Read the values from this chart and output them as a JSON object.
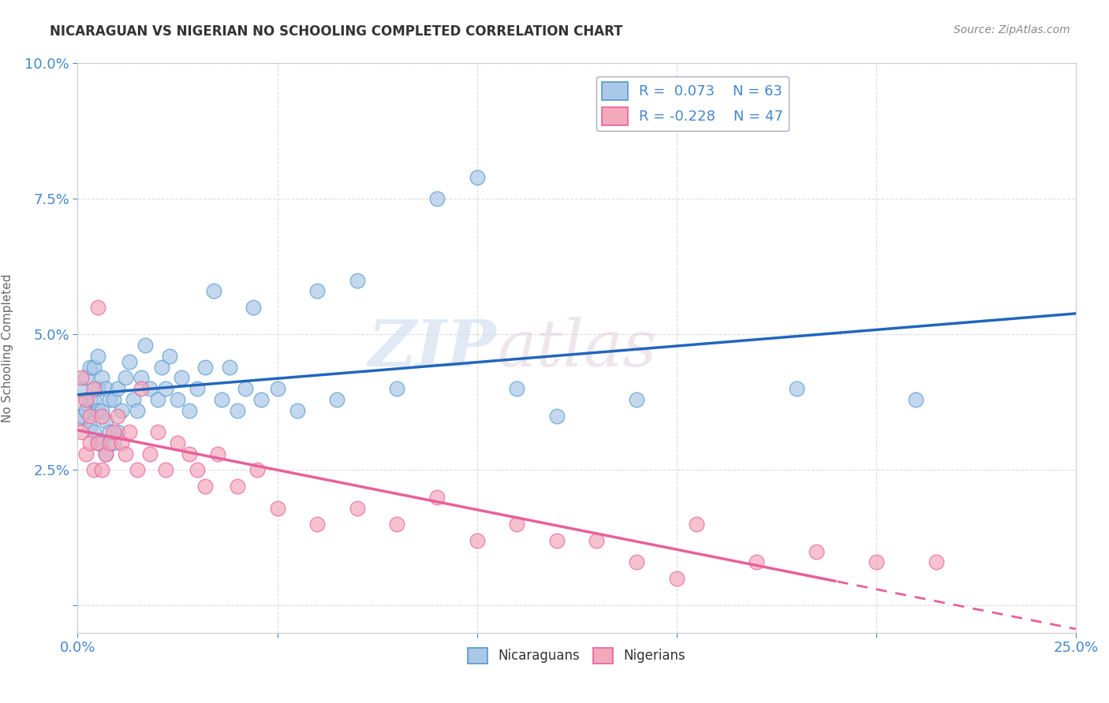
{
  "title": "NICARAGUAN VS NIGERIAN NO SCHOOLING COMPLETED CORRELATION CHART",
  "source": "Source: ZipAtlas.com",
  "ylabel": "No Schooling Completed",
  "xlabel": "",
  "xlim": [
    0.0,
    0.25
  ],
  "ylim": [
    -0.005,
    0.1
  ],
  "xticks": [
    0.0,
    0.05,
    0.1,
    0.15,
    0.2,
    0.25
  ],
  "xtick_labels": [
    "0.0%",
    "",
    "",
    "",
    "",
    "25.0%"
  ],
  "yticks": [
    0.0,
    0.025,
    0.05,
    0.075,
    0.1
  ],
  "ytick_labels": [
    "",
    "2.5%",
    "5.0%",
    "7.5%",
    "10.0%"
  ],
  "nicaraguan_color": "#aac8e8",
  "nigerian_color": "#f4a8bc",
  "nicaraguan_edge_color": "#5599cc",
  "nigerian_edge_color": "#e8609a",
  "nicaraguan_line_color": "#2266bb",
  "nigerian_line_color": "#e8609a",
  "legend_R_nicaraguan": "0.073",
  "legend_N_nicaraguan": "63",
  "legend_R_nigerian": "-0.228",
  "legend_N_nigerian": "47",
  "background_color": "#ffffff",
  "grid_color": "#cccccc",
  "watermark_zip": "ZIP",
  "watermark_atlas": "atlas",
  "nicaraguan_x": [
    0.001,
    0.001,
    0.002,
    0.002,
    0.003,
    0.003,
    0.003,
    0.004,
    0.004,
    0.004,
    0.005,
    0.005,
    0.005,
    0.005,
    0.006,
    0.006,
    0.006,
    0.007,
    0.007,
    0.007,
    0.008,
    0.008,
    0.009,
    0.009,
    0.01,
    0.01,
    0.011,
    0.012,
    0.013,
    0.014,
    0.015,
    0.016,
    0.017,
    0.018,
    0.02,
    0.021,
    0.022,
    0.023,
    0.025,
    0.026,
    0.028,
    0.03,
    0.032,
    0.034,
    0.036,
    0.038,
    0.04,
    0.042,
    0.044,
    0.046,
    0.05,
    0.055,
    0.06,
    0.065,
    0.07,
    0.08,
    0.09,
    0.1,
    0.11,
    0.12,
    0.14,
    0.18,
    0.21
  ],
  "nicaraguan_y": [
    0.035,
    0.04,
    0.036,
    0.042,
    0.033,
    0.038,
    0.044,
    0.032,
    0.038,
    0.044,
    0.03,
    0.036,
    0.04,
    0.046,
    0.03,
    0.036,
    0.042,
    0.028,
    0.034,
    0.04,
    0.032,
    0.038,
    0.03,
    0.038,
    0.032,
    0.04,
    0.036,
    0.042,
    0.045,
    0.038,
    0.036,
    0.042,
    0.048,
    0.04,
    0.038,
    0.044,
    0.04,
    0.046,
    0.038,
    0.042,
    0.036,
    0.04,
    0.044,
    0.058,
    0.038,
    0.044,
    0.036,
    0.04,
    0.055,
    0.038,
    0.04,
    0.036,
    0.058,
    0.038,
    0.06,
    0.04,
    0.075,
    0.079,
    0.04,
    0.035,
    0.038,
    0.04,
    0.038
  ],
  "nigerian_x": [
    0.001,
    0.001,
    0.002,
    0.002,
    0.003,
    0.003,
    0.004,
    0.004,
    0.005,
    0.005,
    0.006,
    0.006,
    0.007,
    0.008,
    0.009,
    0.01,
    0.011,
    0.012,
    0.013,
    0.015,
    0.016,
    0.018,
    0.02,
    0.022,
    0.025,
    0.028,
    0.03,
    0.032,
    0.035,
    0.04,
    0.045,
    0.05,
    0.06,
    0.07,
    0.08,
    0.09,
    0.1,
    0.11,
    0.12,
    0.13,
    0.14,
    0.15,
    0.155,
    0.17,
    0.185,
    0.2,
    0.215
  ],
  "nigerian_y": [
    0.042,
    0.032,
    0.038,
    0.028,
    0.035,
    0.03,
    0.04,
    0.025,
    0.055,
    0.03,
    0.035,
    0.025,
    0.028,
    0.03,
    0.032,
    0.035,
    0.03,
    0.028,
    0.032,
    0.025,
    0.04,
    0.028,
    0.032,
    0.025,
    0.03,
    0.028,
    0.025,
    0.022,
    0.028,
    0.022,
    0.025,
    0.018,
    0.015,
    0.018,
    0.015,
    0.02,
    0.012,
    0.015,
    0.012,
    0.012,
    0.008,
    0.005,
    0.015,
    0.008,
    0.01,
    0.008,
    0.008
  ],
  "nigerian_large_x": [
    0.001
  ],
  "nigerian_large_y": [
    0.04
  ]
}
